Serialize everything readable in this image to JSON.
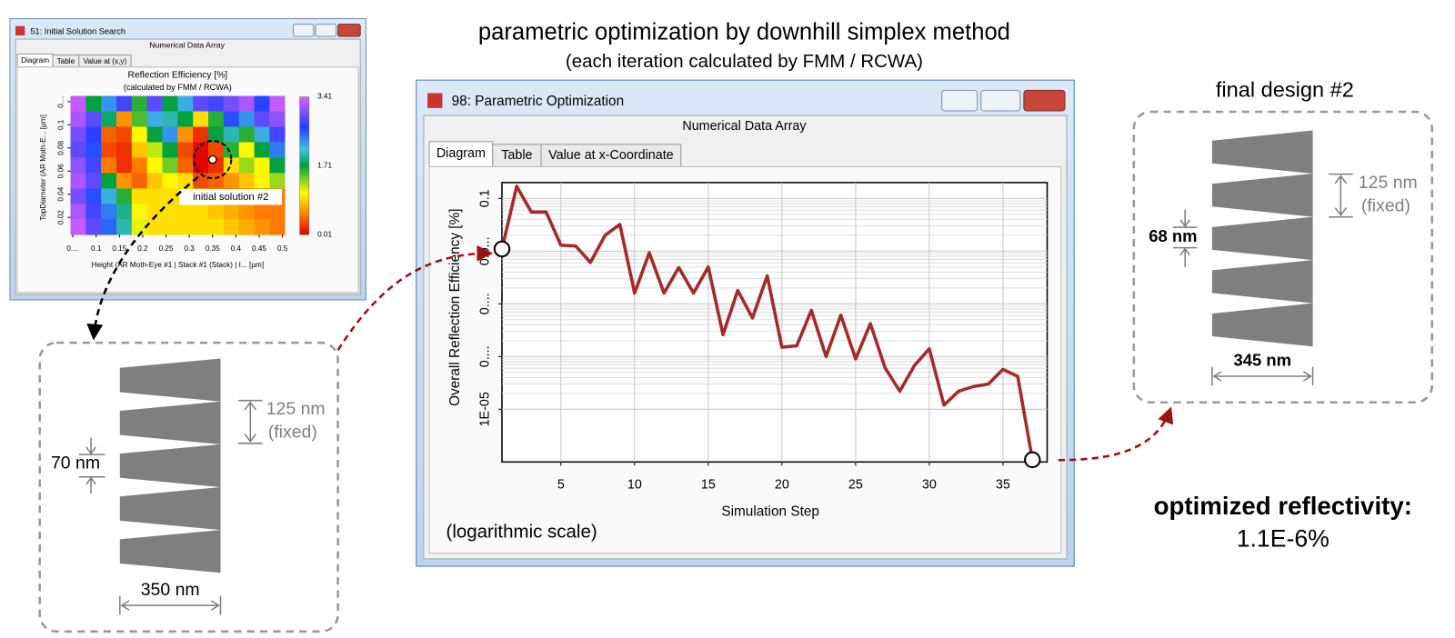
{
  "main_title": "parametric optimization by downhill simplex method",
  "main_subtitle": "(each iteration calculated by FMM / RCWA)",
  "initial_window": {
    "title": "51: Initial Solution Search",
    "header": "Numerical Data Array",
    "tabs": [
      "Diagram",
      "Table",
      "Value at (x,y)"
    ],
    "chart": {
      "type": "heatmap",
      "title": "Reflection Efficiency [%]",
      "subtitle": "(calculated by FMM / RCWA)",
      "x_label": "Height (AR Moth-Eye #1 | Stack #1 (Stack) | I... [µm]",
      "y_label": "TopDiameter (AR Moth-E... [µm]",
      "xlim": [
        0.045,
        0.505
      ],
      "xticks": [
        {
          "value": 0.05,
          "label": "0...."
        },
        0.1,
        0.15,
        0.2,
        0.25,
        0.3,
        0.35,
        0.4,
        0.45,
        0.5
      ],
      "ylim": [
        0.005,
        0.125
      ],
      "yticks": [
        {
          "value": 0.12,
          "label": "0...."
        },
        0.1,
        0.08,
        0.06,
        0.04,
        0.02
      ],
      "values": [
        [
          3.3,
          1.7,
          2.3,
          2.8,
          1.6,
          2.9,
          1.7,
          2.2,
          2.9,
          2.8,
          3.0,
          3.2,
          2.7,
          3.3
        ],
        [
          3.2,
          2.9,
          1.8,
          0.6,
          1.5,
          2.2,
          2.0,
          1.7,
          0.9,
          1.6,
          2.6,
          2.3,
          2.9,
          3.1
        ],
        [
          3.0,
          2.7,
          0.4,
          0.3,
          1.0,
          1.7,
          2.3,
          0.6,
          0.2,
          1.7,
          2.0,
          1.6,
          2.2,
          2.8
        ],
        [
          2.9,
          2.6,
          0.3,
          0.2,
          0.8,
          1.2,
          1.7,
          0.3,
          0.05,
          0.3,
          1.6,
          1.0,
          1.7,
          2.4
        ],
        [
          3.1,
          2.8,
          0.5,
          0.2,
          0.5,
          1.0,
          1.4,
          0.4,
          0.02,
          0.2,
          0.9,
          1.3,
          1.0,
          1.7
        ],
        [
          3.2,
          2.9,
          1.7,
          0.6,
          0.4,
          0.8,
          1.0,
          0.9,
          0.3,
          0.4,
          0.6,
          0.8,
          1.0,
          1.3
        ],
        [
          3.0,
          2.6,
          2.2,
          1.6,
          0.9,
          0.9,
          0.9,
          0.9,
          0.8,
          0.6,
          0.5,
          0.5,
          0.4,
          0.5
        ],
        [
          3.2,
          2.8,
          2.4,
          1.9,
          1.0,
          0.9,
          0.9,
          0.9,
          0.9,
          0.8,
          0.7,
          0.6,
          0.5,
          0.5
        ],
        [
          3.3,
          2.9,
          2.5,
          2.0,
          1.1,
          0.9,
          0.9,
          0.9,
          0.9,
          0.9,
          0.8,
          0.7,
          0.6,
          0.5
        ]
      ],
      "zlim": [
        0.01,
        3.41
      ],
      "colorbar_ticks": [
        0.01,
        1.71,
        3.41
      ],
      "annotation": {
        "text": "initial solution #2",
        "x": 0.35,
        "y": 0.07
      }
    }
  },
  "optimization_window": {
    "title": "98: Parametric Optimization",
    "header": "Numerical Data Array",
    "tabs": [
      "Diagram",
      "Table",
      "Value at x-Coordinate"
    ],
    "chart": {
      "type": "line",
      "x_label": "Simulation Step",
      "y_label": "Overall Reflection Efficiency [%]",
      "note": "(logarithmic scale)",
      "log_y": true,
      "grid": true,
      "color": "#a52a2a",
      "x": [
        1,
        2,
        3,
        4,
        5,
        6,
        7,
        8,
        9,
        10,
        11,
        12,
        13,
        14,
        15,
        16,
        17,
        18,
        19,
        20,
        21,
        22,
        23,
        24,
        25,
        26,
        27,
        28,
        29,
        30,
        31,
        32,
        33,
        34,
        35,
        36,
        37
      ],
      "values": [
        0.011,
        0.17,
        0.055,
        0.055,
        0.013,
        0.0125,
        0.0061,
        0.02,
        0.032,
        0.0016,
        0.0093,
        0.0016,
        0.0049,
        0.0016,
        0.005,
        0.00026,
        0.0018,
        0.00054,
        0.0034,
        0.00015,
        0.00016,
        0.00075,
        0.0001,
        0.00061,
        9e-05,
        0.00042,
        6.1e-05,
        2.2e-05,
        6.8e-05,
        0.00014,
        1.2e-05,
        2.2e-05,
        2.7e-05,
        3e-05,
        5.7e-05,
        4.2e-05,
        1.1e-06
      ],
      "xlim": [
        1,
        38
      ],
      "xticks": [
        5,
        10,
        15,
        20,
        25,
        30,
        35
      ],
      "ylim": [
        1e-06,
        0.2
      ],
      "yticks": [
        0.1,
        {
          "value": 0.01,
          "label": "0.0..."
        },
        {
          "value": 0.001,
          "label": "0...."
        },
        {
          "value": 0.0001,
          "label": "0...."
        },
        {
          "value": 1e-05,
          "label": "1E-05"
        }
      ]
    }
  },
  "initial_design": {
    "pitch": "125 nm",
    "pitch_note": "(fixed)",
    "top": "70 nm",
    "base": "350 nm"
  },
  "final_design": {
    "title": "final design #2",
    "pitch": "125 nm",
    "pitch_note": "(fixed)",
    "top": "68 nm",
    "base": "345 nm"
  },
  "result": {
    "label": "optimized reflectivity:",
    "value": "1.1E-6%"
  }
}
